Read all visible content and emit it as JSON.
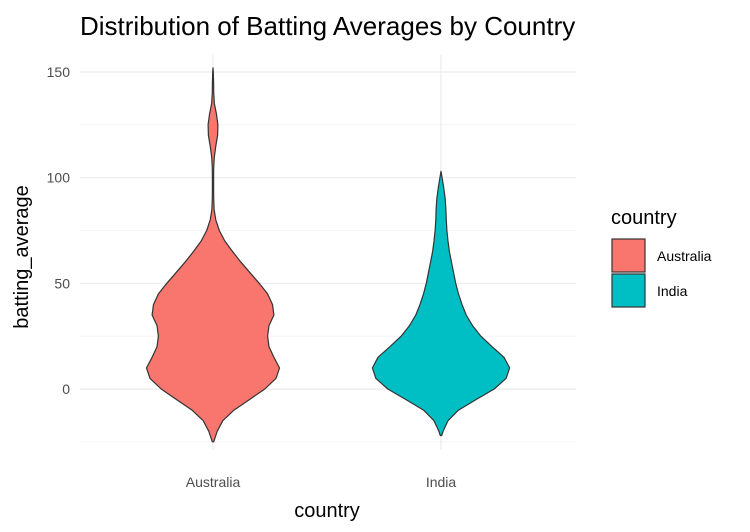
{
  "chart_data": {
    "type": "violin",
    "title": "Distribution of Batting Averages by Country",
    "xlabel": "country",
    "ylabel": "batting_average",
    "categories": [
      "Australia",
      "India"
    ],
    "ylim": [
      -25,
      152
    ],
    "yticks": [
      0,
      50,
      100,
      150
    ],
    "grid": true,
    "legend": {
      "title": "country",
      "placement": "right",
      "entries": [
        {
          "label": "Australia",
          "color": "#F8766D"
        },
        {
          "label": "India",
          "color": "#00BFC4"
        }
      ]
    },
    "series": [
      {
        "name": "Australia",
        "color": "#F8766D",
        "density": [
          [
            -25,
            0.01
          ],
          [
            -20,
            0.06
          ],
          [
            -15,
            0.14
          ],
          [
            -10,
            0.3
          ],
          [
            -5,
            0.52
          ],
          [
            0,
            0.74
          ],
          [
            5,
            0.9
          ],
          [
            10,
            0.95
          ],
          [
            15,
            0.87
          ],
          [
            20,
            0.8
          ],
          [
            25,
            0.78
          ],
          [
            30,
            0.8
          ],
          [
            35,
            0.87
          ],
          [
            40,
            0.85
          ],
          [
            45,
            0.78
          ],
          [
            50,
            0.66
          ],
          [
            55,
            0.53
          ],
          [
            60,
            0.4
          ],
          [
            65,
            0.28
          ],
          [
            70,
            0.17
          ],
          [
            75,
            0.09
          ],
          [
            80,
            0.04
          ],
          [
            85,
            0.015
          ],
          [
            90,
            0.01
          ],
          [
            95,
            0.008
          ],
          [
            100,
            0.008
          ],
          [
            105,
            0.01
          ],
          [
            110,
            0.02
          ],
          [
            115,
            0.04
          ],
          [
            120,
            0.065
          ],
          [
            125,
            0.07
          ],
          [
            130,
            0.05
          ],
          [
            135,
            0.02
          ],
          [
            140,
            0.01
          ],
          [
            145,
            0.008
          ],
          [
            150,
            0.004
          ],
          [
            152,
            0
          ]
        ]
      },
      {
        "name": "India",
        "color": "#00BFC4",
        "density": [
          [
            -22,
            0.01
          ],
          [
            -20,
            0.03
          ],
          [
            -15,
            0.1
          ],
          [
            -10,
            0.25
          ],
          [
            -5,
            0.5
          ],
          [
            0,
            0.76
          ],
          [
            5,
            0.93
          ],
          [
            10,
            0.98
          ],
          [
            15,
            0.9
          ],
          [
            20,
            0.73
          ],
          [
            25,
            0.57
          ],
          [
            30,
            0.45
          ],
          [
            35,
            0.36
          ],
          [
            40,
            0.3
          ],
          [
            45,
            0.25
          ],
          [
            50,
            0.21
          ],
          [
            55,
            0.18
          ],
          [
            60,
            0.15
          ],
          [
            65,
            0.12
          ],
          [
            70,
            0.1
          ],
          [
            75,
            0.085
          ],
          [
            80,
            0.075
          ],
          [
            85,
            0.07
          ],
          [
            90,
            0.06
          ],
          [
            95,
            0.04
          ],
          [
            100,
            0.015
          ],
          [
            103,
            0
          ]
        ]
      }
    ]
  }
}
